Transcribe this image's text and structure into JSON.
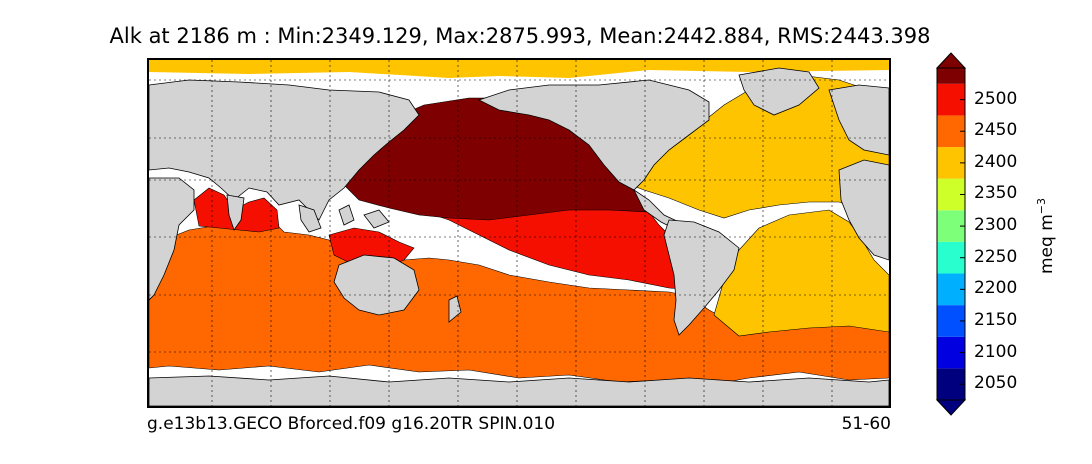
{
  "title": "Alk at 2186 m : Min:2349.129, Max:2875.993, Mean:2442.884, RMS:2443.398",
  "footer": {
    "left": "g.e13b13.GECO Bforced.f09 g16.20TR SPIN.010",
    "right": "51-60"
  },
  "colorbar": {
    "label": "meq m",
    "label_exponent": "−3",
    "ticks": [
      "2050",
      "2100",
      "2150",
      "2200",
      "2250",
      "2300",
      "2350",
      "2400",
      "2450",
      "2500"
    ],
    "min": 2025,
    "max": 2550,
    "bands": [
      {
        "from": 2025,
        "to": 2075,
        "color": "#00007f"
      },
      {
        "from": 2075,
        "to": 2125,
        "color": "#0000e0"
      },
      {
        "from": 2125,
        "to": 2175,
        "color": "#0050ff"
      },
      {
        "from": 2175,
        "to": 2225,
        "color": "#00b0ff"
      },
      {
        "from": 2225,
        "to": 2275,
        "color": "#29ffce"
      },
      {
        "from": 2275,
        "to": 2325,
        "color": "#7dff7a"
      },
      {
        "from": 2325,
        "to": 2375,
        "color": "#ceff29"
      },
      {
        "from": 2375,
        "to": 2425,
        "color": "#ffc400"
      },
      {
        "from": 2425,
        "to": 2475,
        "color": "#ff6800"
      },
      {
        "from": 2475,
        "to": 2525,
        "color": "#f50f00"
      },
      {
        "from": 2525,
        "to": 2550,
        "color": "#7f0000"
      }
    ],
    "extend_low_color": "#00007f",
    "extend_high_color": "#7f0000"
  },
  "map": {
    "land_color": "#d3d3d3",
    "missing_color": "#ffffff",
    "gridlines": "dotted"
  }
}
